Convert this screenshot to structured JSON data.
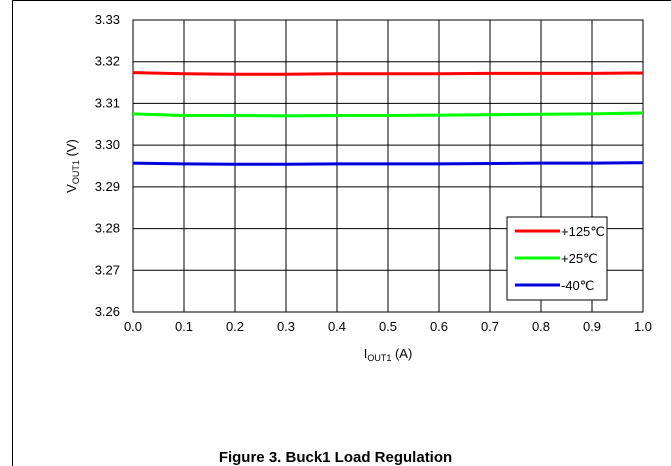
{
  "caption": "Figure 3. Buck1 Load Regulation",
  "chart_data": {
    "type": "line",
    "xlabel": {
      "main": "I",
      "sub": "OUT1",
      "unit": " (A)"
    },
    "ylabel": {
      "main": "V",
      "sub": "OUT1",
      "unit": " (V)"
    },
    "xlim": [
      0.0,
      1.0
    ],
    "ylim": [
      3.26,
      3.33
    ],
    "xticks": [
      "0.0",
      "0.1",
      "0.2",
      "0.3",
      "0.4",
      "0.5",
      "0.6",
      "0.7",
      "0.8",
      "0.9",
      "1.0"
    ],
    "yticks": [
      "3.26",
      "3.27",
      "3.28",
      "3.29",
      "3.30",
      "3.31",
      "3.32",
      "3.33"
    ],
    "grid": true,
    "legend_position": "bottom-right",
    "x": [
      0.0,
      0.1,
      0.2,
      0.3,
      0.4,
      0.5,
      0.6,
      0.7,
      0.8,
      0.9,
      1.0
    ],
    "series": [
      {
        "name": "+125℃",
        "color": "#ff0000",
        "values": [
          3.3174,
          3.3171,
          3.317,
          3.317,
          3.3171,
          3.3171,
          3.3171,
          3.3172,
          3.3172,
          3.3172,
          3.3173
        ]
      },
      {
        "name": "+25℃",
        "color": "#00ff00",
        "values": [
          3.3075,
          3.3071,
          3.3071,
          3.307,
          3.3071,
          3.3071,
          3.3072,
          3.3073,
          3.3074,
          3.3075,
          3.3077
        ]
      },
      {
        "name": "-40℃",
        "color": "#0000dd",
        "values": [
          3.2957,
          3.2955,
          3.2954,
          3.2954,
          3.2955,
          3.2955,
          3.2955,
          3.2956,
          3.2957,
          3.2957,
          3.2958
        ]
      }
    ]
  }
}
